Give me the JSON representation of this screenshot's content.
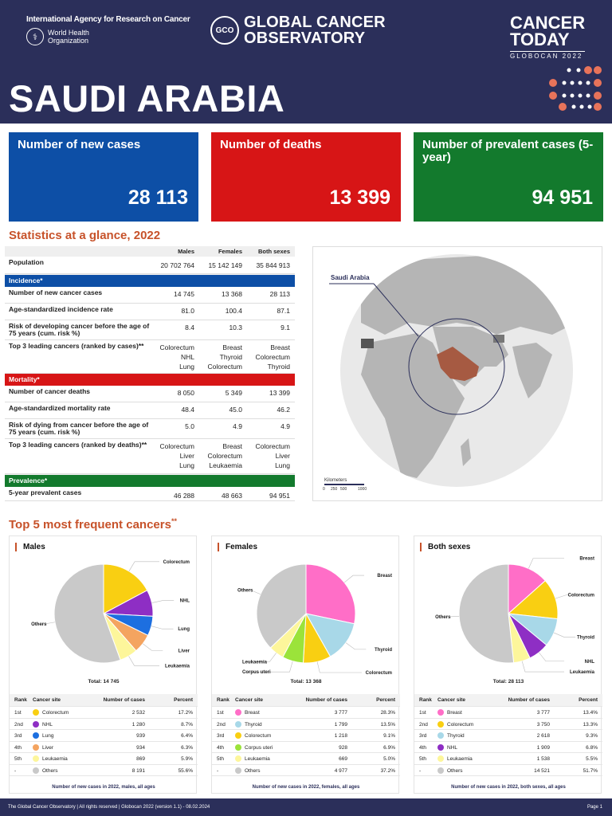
{
  "header": {
    "iarc_title": "International Agency for Research on Cancer",
    "who_line1": "World Health",
    "who_line2": "Organization",
    "gco_abbr": "GCO",
    "gco_line1": "GLOBAL CANCER",
    "gco_line2": "OBSERVATORY",
    "ct_line1": "CANCER",
    "ct_line2": "TODAY",
    "ct_sub": "GLOBOCAN 2022",
    "country": "SAUDI ARABIA"
  },
  "cards": {
    "new_cases_label": "Number of new cases",
    "new_cases_value": "28 113",
    "deaths_label": "Number of deaths",
    "deaths_value": "13 399",
    "prevalent_label": "Number of prevalent cases (5-year)",
    "prevalent_value": "94 951"
  },
  "stats": {
    "title": "Statistics at a glance, 2022",
    "col_males": "Males",
    "col_females": "Females",
    "col_both": "Both sexes",
    "population_label": "Population",
    "population": [
      "20 702 764",
      "15 142 149",
      "35 844 913"
    ],
    "incidence_band": "Incidence*",
    "inc_new_label": "Number of new cancer cases",
    "inc_new": [
      "14 745",
      "13 368",
      "28 113"
    ],
    "inc_asr_label": "Age-standardized incidence rate",
    "inc_asr": [
      "81.0",
      "100.4",
      "87.1"
    ],
    "inc_risk_label": "Risk of developing cancer before the age of 75 years (cum. risk %)",
    "inc_risk": [
      "8.4",
      "10.3",
      "9.1"
    ],
    "inc_top3_label": "Top 3 leading cancers (ranked by cases)**",
    "inc_top3_m": "Colorectum\nNHL\nLung",
    "inc_top3_f": "Breast\nThyroid\nColorectum",
    "inc_top3_b": "Breast\nColorectum\nThyroid",
    "mortality_band": "Mortality*",
    "mort_deaths_label": "Number of cancer deaths",
    "mort_deaths": [
      "8 050",
      "5 349",
      "13 399"
    ],
    "mort_asr_label": "Age-standardized mortality rate",
    "mort_asr": [
      "48.4",
      "45.0",
      "46.2"
    ],
    "mort_risk_label": "Risk of dying from cancer before the age of 75 years (cum. risk %)",
    "mort_risk": [
      "5.0",
      "4.9",
      "4.9"
    ],
    "mort_top3_label": "Top 3 leading cancers (ranked by deaths)**",
    "mort_top3_m": "Colorectum\nLiver\nLung",
    "mort_top3_f": "Breast\nColorectum\nLeukaemia",
    "mort_top3_b": "Colorectum\nLiver\nLung",
    "prevalence_band": "Prevalence*",
    "prev_label": "5-year prevalent cases",
    "prev": [
      "46 288",
      "48 663",
      "94 951"
    ]
  },
  "map": {
    "callout": "Saudi Arabia",
    "scale_title": "Kilometers",
    "scale_ticks": [
      "0",
      "250",
      "500",
      "1000"
    ]
  },
  "top5": {
    "title": "Top 5 most frequent cancers",
    "title_mark": "**",
    "col_rank": "Rank",
    "col_site": "Cancer site",
    "col_cases": "Number of cases",
    "col_pct": "Percent"
  },
  "chart_data": [
    {
      "type": "pie",
      "title": "Males",
      "total": "Total: 14 745",
      "note": "Number of new cases in 2022, males, all ages",
      "slices": [
        {
          "rank": "1st",
          "name": "Colorectum",
          "cases": "2 532",
          "pct": "17.2%",
          "value": 17.2,
          "color": "#f9cf12"
        },
        {
          "rank": "2nd",
          "name": "NHL",
          "cases": "1 280",
          "pct": "8.7%",
          "value": 8.7,
          "color": "#8e2ec4"
        },
        {
          "rank": "3rd",
          "name": "Lung",
          "cases": "939",
          "pct": "6.4%",
          "value": 6.4,
          "color": "#1d6fe0"
        },
        {
          "rank": "4th",
          "name": "Liver",
          "cases": "934",
          "pct": "6.3%",
          "value": 6.3,
          "color": "#f4a460"
        },
        {
          "rank": "5th",
          "name": "Leukaemia",
          "cases": "869",
          "pct": "5.9%",
          "value": 5.9,
          "color": "#fdf69b"
        },
        {
          "rank": "-",
          "name": "Others",
          "cases": "8 191",
          "pct": "55.6%",
          "value": 55.6,
          "color": "#c9c9c9"
        }
      ]
    },
    {
      "type": "pie",
      "title": "Females",
      "total": "Total: 13 368",
      "note": "Number of new cases in 2022, females, all ages",
      "slices": [
        {
          "rank": "1st",
          "name": "Breast",
          "cases": "3 777",
          "pct": "28.3%",
          "value": 28.3,
          "color": "#ff6ec7"
        },
        {
          "rank": "2nd",
          "name": "Thyroid",
          "cases": "1 799",
          "pct": "13.5%",
          "value": 13.5,
          "color": "#a8d8e8"
        },
        {
          "rank": "3rd",
          "name": "Colorectum",
          "cases": "1 218",
          "pct": "9.1%",
          "value": 9.1,
          "color": "#f9cf12"
        },
        {
          "rank": "4th",
          "name": "Corpus uteri",
          "cases": "928",
          "pct": "6.9%",
          "value": 6.9,
          "color": "#9be33a"
        },
        {
          "rank": "5th",
          "name": "Leukaemia",
          "cases": "669",
          "pct": "5.0%",
          "value": 5.0,
          "color": "#fdf69b"
        },
        {
          "rank": "-",
          "name": "Others",
          "cases": "4 977",
          "pct": "37.2%",
          "value": 37.2,
          "color": "#c9c9c9"
        }
      ]
    },
    {
      "type": "pie",
      "title": "Both sexes",
      "total": "Total: 28 113",
      "note": "Number of new cases in 2022, both sexes, all ages",
      "slices": [
        {
          "rank": "1st",
          "name": "Breast",
          "cases": "3 777",
          "pct": "13.4%",
          "value": 13.4,
          "color": "#ff6ec7"
        },
        {
          "rank": "2nd",
          "name": "Colorectum",
          "cases": "3 750",
          "pct": "13.3%",
          "value": 13.3,
          "color": "#f9cf12"
        },
        {
          "rank": "3rd",
          "name": "Thyroid",
          "cases": "2 618",
          "pct": "9.3%",
          "value": 9.3,
          "color": "#a8d8e8"
        },
        {
          "rank": "4th",
          "name": "NHL",
          "cases": "1 909",
          "pct": "6.8%",
          "value": 6.8,
          "color": "#8e2ec4"
        },
        {
          "rank": "5th",
          "name": "Leukaemia",
          "cases": "1 538",
          "pct": "5.5%",
          "value": 5.5,
          "color": "#fdf69b"
        },
        {
          "rank": "-",
          "name": "Others",
          "cases": "14 521",
          "pct": "51.7%",
          "value": 51.7,
          "color": "#c9c9c9"
        }
      ]
    }
  ],
  "footer": {
    "left": "The Global Cancer Observatory | All rights reserved | Globocan 2022 (version 1.1) - 08.02.2024",
    "right": "Page 1"
  }
}
